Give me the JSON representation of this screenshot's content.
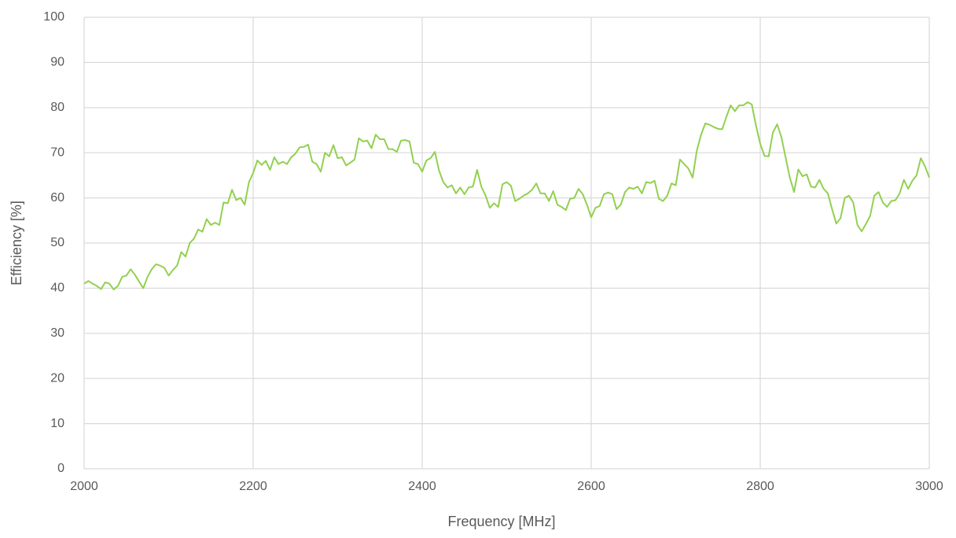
{
  "chart_data": {
    "type": "line",
    "x_label": "Frequency [MHz]",
    "y_label": "Efficiency [%]",
    "xlim": [
      2000,
      3000
    ],
    "xticks": [
      2000,
      2200,
      2400,
      2600,
      2800,
      3000
    ],
    "ylim": [
      0,
      100
    ],
    "yticks": [
      0,
      10,
      20,
      30,
      40,
      50,
      60,
      70,
      80,
      90,
      100
    ],
    "grid": true,
    "x": [
      2000,
      2005,
      2010,
      2015,
      2020,
      2025,
      2030,
      2035,
      2040,
      2045,
      2050,
      2055,
      2060,
      2065,
      2070,
      2075,
      2080,
      2085,
      2090,
      2095,
      2100,
      2105,
      2110,
      2115,
      2120,
      2125,
      2130,
      2135,
      2140,
      2145,
      2150,
      2155,
      2160,
      2165,
      2170,
      2175,
      2180,
      2185,
      2190,
      2195,
      2200,
      2205,
      2210,
      2215,
      2220,
      2225,
      2230,
      2235,
      2240,
      2245,
      2250,
      2255,
      2260,
      2265,
      2270,
      2275,
      2280,
      2285,
      2290,
      2295,
      2300,
      2305,
      2310,
      2315,
      2320,
      2325,
      2330,
      2335,
      2340,
      2345,
      2350,
      2355,
      2360,
      2365,
      2370,
      2375,
      2380,
      2385,
      2390,
      2395,
      2400,
      2405,
      2410,
      2415,
      2420,
      2425,
      2430,
      2435,
      2440,
      2445,
      2450,
      2455,
      2460,
      2465,
      2470,
      2475,
      2480,
      2485,
      2490,
      2495,
      2500,
      2505,
      2510,
      2515,
      2520,
      2525,
      2530,
      2535,
      2540,
      2545,
      2550,
      2555,
      2560,
      2565,
      2570,
      2575,
      2580,
      2585,
      2590,
      2595,
      2600,
      2605,
      2610,
      2615,
      2620,
      2625,
      2630,
      2635,
      2640,
      2645,
      2650,
      2655,
      2660,
      2665,
      2670,
      2675,
      2680,
      2685,
      2690,
      2695,
      2700,
      2705,
      2710,
      2715,
      2720,
      2725,
      2730,
      2735,
      2740,
      2745,
      2750,
      2755,
      2760,
      2765,
      2770,
      2775,
      2780,
      2785,
      2790,
      2795,
      2800,
      2805,
      2810,
      2815,
      2820,
      2825,
      2830,
      2835,
      2840,
      2845,
      2850,
      2855,
      2860,
      2865,
      2870,
      2875,
      2880,
      2885,
      2890,
      2895,
      2900,
      2905,
      2910,
      2915,
      2920,
      2925,
      2930,
      2935,
      2940,
      2945,
      2950,
      2955,
      2960,
      2965,
      2970,
      2975,
      2980,
      2985,
      2990,
      2995,
      3000
    ],
    "series": [
      {
        "name": "Efficiency",
        "color": "#92d050",
        "values": [
          41,
          41.6,
          41,
          40.5,
          39.8,
          41.3,
          41,
          39.7,
          40.5,
          42.5,
          42.8,
          44.2,
          43,
          41.5,
          40,
          42.5,
          44.2,
          45.3,
          45,
          44.5,
          42.8,
          44,
          45,
          48,
          47,
          50,
          51,
          53,
          52.5,
          55.3,
          54,
          54.5,
          54,
          59,
          58.8,
          61.8,
          59.5,
          60,
          58.5,
          63.5,
          65.5,
          68.3,
          67.3,
          68.2,
          66.2,
          69,
          67.5,
          68,
          67.5,
          69,
          69.8,
          71.2,
          71.3,
          71.8,
          68,
          67.5,
          65.8,
          70,
          69.2,
          71.7,
          68.8,
          69,
          67.2,
          67.8,
          68.5,
          73.2,
          72.5,
          72.7,
          71,
          74,
          73,
          73,
          70.8,
          70.8,
          70.2,
          72.7,
          72.8,
          72.5,
          67.8,
          67.5,
          65.8,
          68.3,
          68.8,
          70.2,
          66,
          63.5,
          62.3,
          62.8,
          61,
          62.3,
          60.8,
          62.3,
          62.5,
          66.2,
          62.5,
          60.5,
          57.8,
          58.8,
          58,
          63,
          63.5,
          62.7,
          59.3,
          59.8,
          60.5,
          61,
          61.8,
          63.2,
          61,
          61,
          59.3,
          61.5,
          58.5,
          58,
          57.3,
          59.8,
          60,
          62,
          60.8,
          58.5,
          55.7,
          57.8,
          58.2,
          60.8,
          61.2,
          60.8,
          57.5,
          58.5,
          61.3,
          62.3,
          62,
          62.5,
          61,
          63.5,
          63.3,
          63.8,
          59.8,
          59.3,
          60.5,
          63.2,
          62.8,
          68.5,
          67.5,
          66.5,
          64.5,
          70.5,
          74,
          76.5,
          76.2,
          75.7,
          75.3,
          75.2,
          78,
          80.5,
          79.2,
          80.5,
          80.5,
          81.2,
          80.7,
          76,
          72,
          69.3,
          69.2,
          74.5,
          76.3,
          73.5,
          69,
          64.5,
          61.3,
          66.3,
          64.8,
          65.2,
          62.5,
          62.3,
          64,
          62,
          61,
          57.5,
          54.3,
          55.5,
          60,
          60.5,
          59,
          54,
          52.6,
          54.2,
          56,
          60.5,
          61.3,
          59,
          58,
          59.3,
          59.5,
          61,
          64,
          62,
          63.8,
          65,
          68.8,
          67,
          64.5
        ]
      }
    ]
  }
}
